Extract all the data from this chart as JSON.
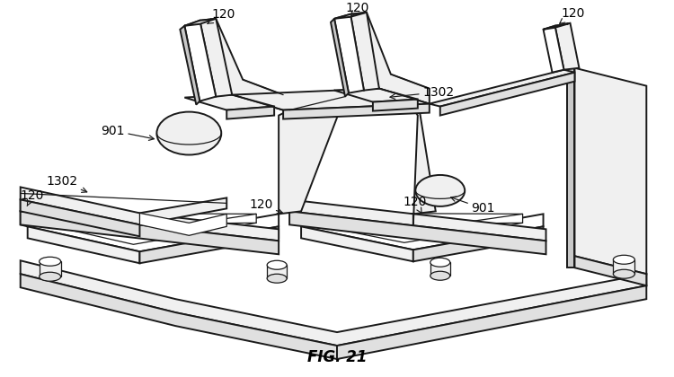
{
  "fig_label": "FIG. 21",
  "fig_label_fontsize": 12,
  "bg_color": "#ffffff",
  "lc": "#1a1a1a",
  "lw": 1.4,
  "lwt": 0.9,
  "fc_white": "#ffffff",
  "fc_light": "#f0f0f0",
  "fc_mid": "#e0e0e0",
  "fc_dark": "#c8c8c8",
  "label_fs": 10
}
